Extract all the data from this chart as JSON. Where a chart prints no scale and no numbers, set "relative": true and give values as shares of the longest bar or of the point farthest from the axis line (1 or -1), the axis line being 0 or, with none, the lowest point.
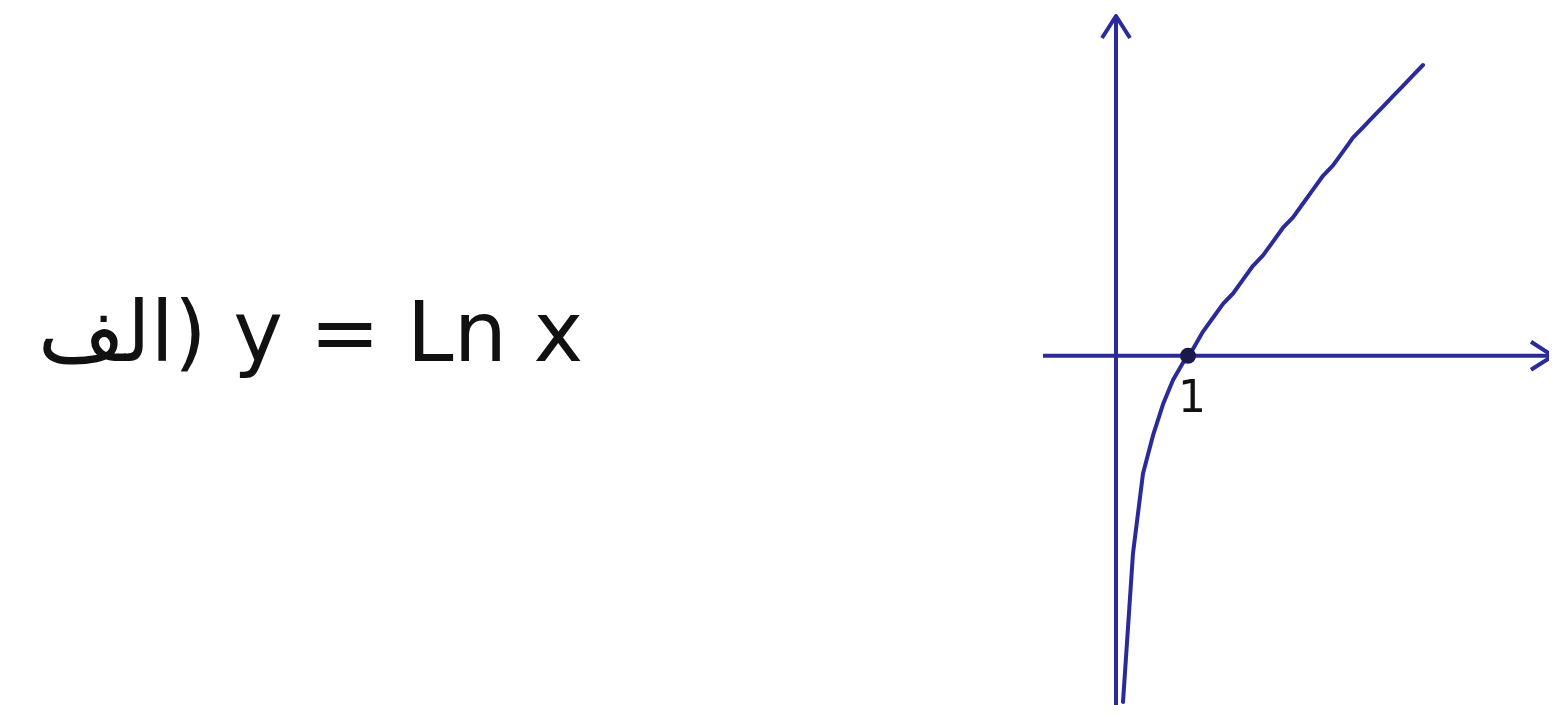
{
  "chart_data": {
    "type": "line",
    "title": "الف) y = Ln x",
    "relative": true,
    "annotations": [
      "1"
    ],
    "ref_lines": [
      {
        "axis": "y",
        "value": 0,
        "color": "#2a2a9a"
      }
    ],
    "categories": [
      null,
      null,
      null,
      null,
      null,
      null,
      null,
      null,
      null,
      null,
      null,
      null,
      null,
      null,
      null,
      null,
      null,
      null,
      null,
      null,
      null,
      null,
      null,
      null,
      null,
      null,
      null,
      null,
      null,
      null,
      null
    ],
    "series": [
      {
        "color": "#2a2a9a",
        "values": [
          -1,
          -0.57,
          -0.34,
          -0.23,
          -0.14,
          -0.07,
          -0.02,
          0.02,
          0.07,
          0.11,
          0.15,
          0.18,
          0.22,
          0.26,
          0.29,
          0.33,
          0.37,
          0.4,
          0.44,
          0.48,
          0.52,
          0.55,
          0.59,
          0.63,
          0.66,
          0.69,
          0.72,
          0.75,
          0.78,
          0.81,
          0.84
        ]
      }
    ]
  }
}
